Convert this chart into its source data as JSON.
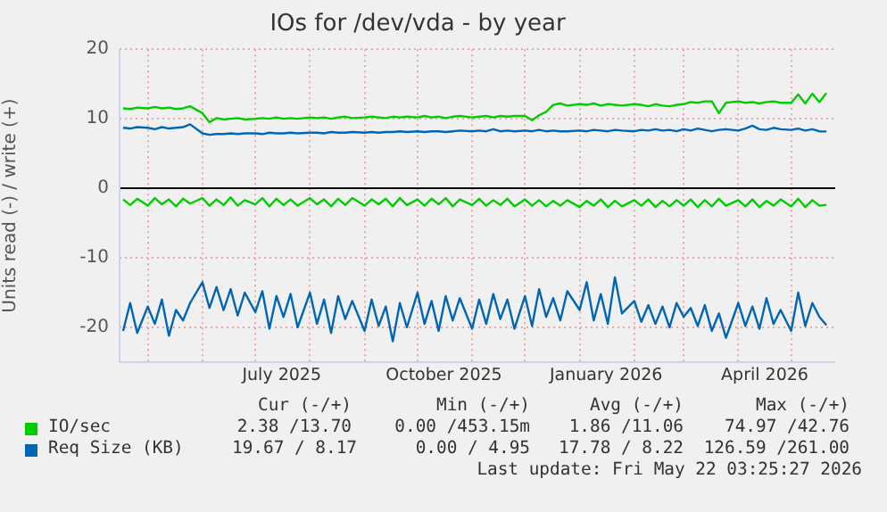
{
  "chart_data": {
    "type": "line",
    "title": "IOs for /dev/vda - by year",
    "ylabel": "Units read (-) / write (+)",
    "x": [
      "2025-04-17",
      "2025-04-21",
      "2025-04-25",
      "2025-05-01",
      "2025-05-05",
      "2025-05-09",
      "2025-05-13",
      "2025-05-17",
      "2025-05-21",
      "2025-05-25",
      "2025-06-01",
      "2025-06-05",
      "2025-06-09",
      "2025-06-13",
      "2025-06-17",
      "2025-06-21",
      "2025-06-25",
      "2025-07-01",
      "2025-07-05",
      "2025-07-09",
      "2025-07-13",
      "2025-07-17",
      "2025-07-21",
      "2025-07-25",
      "2025-08-01",
      "2025-08-05",
      "2025-08-09",
      "2025-08-13",
      "2025-08-17",
      "2025-08-21",
      "2025-08-25",
      "2025-09-01",
      "2025-09-05",
      "2025-09-09",
      "2025-09-13",
      "2025-09-17",
      "2025-09-21",
      "2025-09-25",
      "2025-10-01",
      "2025-10-05",
      "2025-10-09",
      "2025-10-13",
      "2025-10-17",
      "2025-10-21",
      "2025-10-25",
      "2025-11-01",
      "2025-11-05",
      "2025-11-09",
      "2025-11-13",
      "2025-11-17",
      "2025-11-21",
      "2025-11-25",
      "2025-12-01",
      "2025-12-05",
      "2025-12-09",
      "2025-12-13",
      "2025-12-17",
      "2025-12-21",
      "2025-12-25",
      "2026-01-01",
      "2026-01-05",
      "2026-01-09",
      "2026-01-13",
      "2026-01-17",
      "2026-01-21",
      "2026-01-25",
      "2026-02-01",
      "2026-02-05",
      "2026-02-09",
      "2026-02-13",
      "2026-02-17",
      "2026-02-21",
      "2026-02-25",
      "2026-03-01",
      "2026-03-05",
      "2026-03-09",
      "2026-03-13",
      "2026-03-17",
      "2026-03-21",
      "2026-03-25",
      "2026-04-01",
      "2026-04-05",
      "2026-04-09",
      "2026-04-13",
      "2026-04-17",
      "2026-04-21",
      "2026-04-25",
      "2026-05-01",
      "2026-05-05",
      "2026-05-09",
      "2026-05-13",
      "2026-05-17",
      "2026-05-21"
    ],
    "series": [
      {
        "color": "#00cc00",
        "values": [
          -1.6,
          -2.4,
          -1.5,
          -2.5,
          -1.4,
          -2.3,
          -1.6,
          -2.6,
          -1.5,
          -2.2,
          -1.4,
          -2.5,
          -1.6,
          -2.4,
          -1.3,
          -2.5,
          -1.7,
          -2.3,
          -1.4,
          -2.6,
          -1.5,
          -2.4,
          -1.6,
          -2.5,
          -1.4,
          -2.3,
          -1.6,
          -2.6,
          -1.5,
          -2.4,
          -1.4,
          -2.5,
          -1.6,
          -2.3,
          -1.5,
          -2.6,
          -1.4,
          -2.4,
          -1.6,
          -2.5,
          -1.5,
          -2.3,
          -1.4,
          -2.6,
          -1.6,
          -2.4,
          -1.5,
          -2.5,
          -1.7,
          -2.4,
          -1.5,
          -2.6,
          -1.6,
          -2.5,
          -1.7,
          -2.6,
          -1.8,
          -2.5,
          -1.7,
          -2.7,
          -1.8,
          -2.5,
          -1.6,
          -2.7,
          -1.8,
          -2.6,
          -1.7,
          -2.5,
          -1.6,
          -2.7,
          -1.8,
          -2.6,
          -1.7,
          -2.5,
          -1.6,
          -2.7,
          -1.7,
          -2.6,
          -1.5,
          -2.5,
          -1.7,
          -2.6,
          -1.6,
          -2.7,
          -1.8,
          -2.5,
          -1.6,
          -2.6,
          -1.5,
          -2.7,
          -1.7,
          -2.5,
          -2.38
        ]
      },
      {
        "name": "IO/sec",
        "color": "#00cc00",
        "values": [
          11.5,
          11.4,
          11.6,
          11.5,
          11.7,
          11.5,
          11.6,
          11.4,
          11.5,
          11.8,
          10.8,
          9.5,
          10.1,
          9.9,
          10.0,
          10.1,
          9.9,
          10.0,
          10.1,
          10.0,
          10.2,
          10.0,
          10.1,
          10.0,
          10.2,
          10.1,
          10.2,
          10.0,
          10.2,
          10.3,
          10.1,
          10.2,
          10.3,
          10.2,
          10.1,
          10.3,
          10.2,
          10.3,
          10.2,
          10.4,
          10.2,
          10.3,
          10.1,
          10.3,
          10.4,
          10.2,
          10.3,
          10.4,
          10.2,
          10.4,
          10.3,
          10.4,
          10.4,
          9.8,
          10.5,
          11.0,
          12.0,
          12.2,
          11.9,
          12.1,
          12.0,
          12.2,
          11.9,
          12.1,
          12.0,
          11.9,
          12.1,
          12.0,
          11.8,
          12.1,
          11.9,
          11.8,
          12.0,
          12.1,
          12.4,
          12.3,
          12.5,
          12.5,
          10.8,
          12.3,
          12.5,
          12.3,
          12.4,
          12.2,
          12.4,
          12.5,
          12.3,
          12.3,
          13.5,
          12.2,
          13.6,
          12.4,
          13.7
        ]
      },
      {
        "color": "#0066b3",
        "values": [
          -20.5,
          -16.5,
          -20.8,
          -17.0,
          -19.5,
          -16.0,
          -21.2,
          -17.5,
          -19.0,
          -16.5,
          -13.5,
          -17.2,
          -14.2,
          -17.5,
          -14.5,
          -18.3,
          -15.0,
          -17.8,
          -14.8,
          -20.2,
          -15.5,
          -18.5,
          -15.2,
          -20.0,
          -15.0,
          -19.5,
          -16.0,
          -20.8,
          -15.5,
          -18.8,
          -16.2,
          -20.5,
          -16.0,
          -19.8,
          -17.0,
          -22.0,
          -16.5,
          -20.0,
          -15.0,
          -19.5,
          -16.2,
          -20.5,
          -15.5,
          -19.0,
          -15.8,
          -20.2,
          -16.0,
          -19.5,
          -15.2,
          -18.8,
          -16.0,
          -20.2,
          -15.5,
          -19.8,
          -14.5,
          -18.5,
          -15.8,
          -19.0,
          -14.8,
          -17.5,
          -13.5,
          -19.0,
          -15.2,
          -19.5,
          -12.8,
          -18.0,
          -16.2,
          -19.2,
          -16.8,
          -19.5,
          -17.0,
          -20.0,
          -16.5,
          -18.5,
          -17.2,
          -19.8,
          -16.8,
          -20.5,
          -18.0,
          -21.5,
          -16.5,
          -19.8,
          -17.0,
          -20.2,
          -15.8,
          -19.5,
          -17.5,
          -20.5,
          -15.0,
          -19.8,
          -16.5,
          -18.5,
          -19.67
        ]
      },
      {
        "name": "Req Size (KB)",
        "color": "#0066b3",
        "values": [
          8.7,
          8.6,
          8.8,
          8.7,
          8.5,
          8.8,
          8.6,
          8.7,
          8.8,
          9.2,
          7.9,
          7.7,
          7.8,
          7.8,
          7.9,
          7.8,
          7.9,
          7.9,
          7.8,
          8.0,
          7.9,
          7.9,
          8.0,
          7.9,
          8.0,
          8.0,
          7.9,
          8.1,
          8.0,
          8.0,
          8.1,
          8.0,
          8.1,
          8.0,
          8.1,
          8.1,
          8.2,
          8.1,
          8.2,
          8.1,
          8.2,
          8.2,
          8.1,
          8.2,
          8.3,
          8.2,
          8.3,
          8.2,
          8.5,
          8.2,
          8.3,
          8.2,
          8.3,
          8.2,
          8.4,
          8.2,
          8.3,
          8.2,
          8.2,
          8.3,
          8.2,
          8.4,
          8.3,
          8.2,
          8.4,
          8.3,
          8.2,
          8.4,
          8.3,
          8.5,
          8.3,
          8.4,
          8.2,
          8.5,
          8.3,
          8.6,
          8.4,
          8.2,
          8.4,
          8.5,
          8.3,
          8.6,
          9.0,
          8.5,
          8.4,
          8.7,
          8.5,
          8.4,
          8.6,
          8.3,
          8.5,
          8.2,
          8.17
        ]
      }
    ],
    "xlim": [
      "2025-04-15",
      "2026-05-26"
    ],
    "xticks": [
      {
        "value": "2025-05-01",
        "label": null
      },
      {
        "value": "2025-06-01",
        "label": null
      },
      {
        "value": "2025-07-01",
        "label": null
      },
      {
        "value": "2025-07-16",
        "label": "July 2025"
      },
      {
        "value": "2025-08-01",
        "label": null
      },
      {
        "value": "2025-09-01",
        "label": null
      },
      {
        "value": "2025-10-01",
        "label": null
      },
      {
        "value": "2025-10-16",
        "label": "October 2025"
      },
      {
        "value": "2025-11-01",
        "label": null
      },
      {
        "value": "2025-12-01",
        "label": null
      },
      {
        "value": "2026-01-01",
        "label": null
      },
      {
        "value": "2026-01-16",
        "label": "January 2026"
      },
      {
        "value": "2026-02-01",
        "label": null
      },
      {
        "value": "2026-03-01",
        "label": null
      },
      {
        "value": "2026-04-01",
        "label": null
      },
      {
        "value": "2026-04-16",
        "label": "April 2026"
      },
      {
        "value": "2026-05-01",
        "label": null
      }
    ],
    "ylim": [
      -25,
      20
    ],
    "yticks": [
      -20,
      -10,
      0,
      10,
      20
    ],
    "ref_lines": [
      {
        "axis": "y",
        "value": 0,
        "color": "#000000"
      }
    ],
    "grid": true,
    "legend": "bottom",
    "marker": "none",
    "line_style": "solid",
    "annotations": [
      "Cur (-/+)",
      "Min (-/+)",
      "Avg (-/+)",
      "Max (-/+)",
      "2.38 /13.70",
      "0.00 /453.15m",
      "1.86 /11.06",
      "74.97 /42.76",
      "19.67 / 8.17",
      "0.00 / 4.95",
      "17.78 / 8.22",
      "126.59 /261.00",
      "Last update: Fri May 22 03:25:27 2026"
    ]
  }
}
